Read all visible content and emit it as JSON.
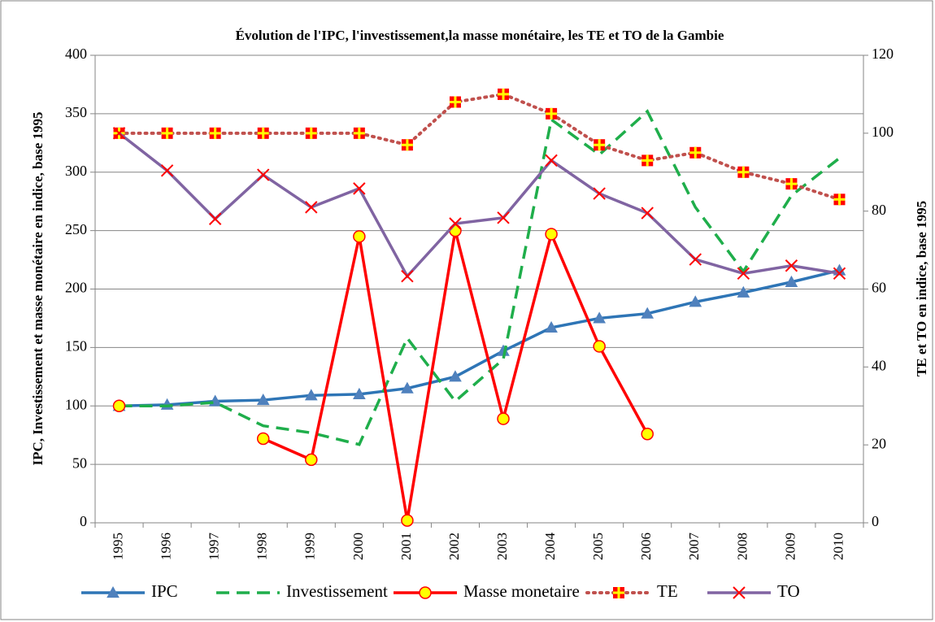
{
  "chart_data": {
    "type": "line",
    "title": "Évolution de l'IPC, l'investissement,la masse monétaire, les TE et TO de la Gambie",
    "y_label": "IPC, Investissement et masse monétaire en indice, base 1995",
    "y2_label": "TE et TO en indice, base 1995",
    "categories": [
      "1995",
      "1996",
      "1997",
      "1998",
      "1999",
      "2000",
      "2001",
      "2002",
      "2003",
      "2004",
      "2005",
      "2006",
      "2007",
      "2008",
      "2009",
      "2010"
    ],
    "ylim": [
      0,
      400
    ],
    "yticks": [
      0,
      50,
      100,
      150,
      200,
      250,
      300,
      350,
      400
    ],
    "y2lim": [
      0,
      120
    ],
    "y2ticks": [
      0,
      20,
      40,
      60,
      80,
      100,
      120
    ],
    "grid": true,
    "legend": "bottom",
    "series": [
      {
        "name": "IPC",
        "color": "#2e75b6",
        "dash": "solid",
        "marker": "triangle",
        "values": [
          100,
          101,
          104,
          105,
          109,
          110,
          115,
          125,
          147,
          167,
          175,
          179,
          189,
          197,
          206,
          216
        ]
      },
      {
        "name": "Investissement",
        "color": "#1fae4b",
        "dash": "dashed",
        "marker": "none",
        "values": [
          100,
          100,
          103,
          83,
          77,
          67,
          158,
          104,
          140,
          345,
          315,
          352,
          270,
          215,
          280,
          312
        ]
      },
      {
        "name": "Masse monetaire",
        "color": "#ff0000",
        "dash": "solid",
        "marker": "circle",
        "values": [
          100,
          null,
          null,
          72,
          54,
          245,
          2,
          250,
          89,
          247,
          151,
          76,
          null,
          null,
          null,
          null
        ]
      },
      {
        "name": "TE",
        "color": "#c0504d",
        "dash": "dotted",
        "marker": "square",
        "axis": "y2",
        "values": [
          100,
          100,
          100,
          100,
          100,
          100,
          97,
          108,
          110,
          105,
          97,
          93,
          95,
          90,
          87,
          83
        ]
      },
      {
        "name": "TO",
        "color": "#8064a2",
        "dash": "solid",
        "marker": "x",
        "axis": "y2",
        "values": [
          100,
          90.4,
          78,
          89.3,
          81,
          85.8,
          63.3,
          76.8,
          78.3,
          93,
          84.5,
          79.5,
          67.6,
          64,
          66,
          64
        ]
      }
    ]
  }
}
